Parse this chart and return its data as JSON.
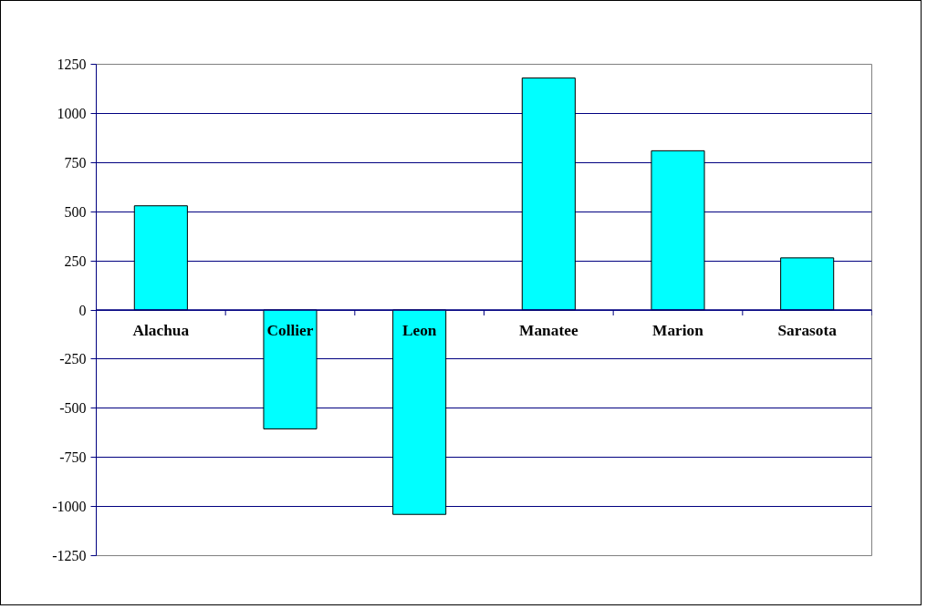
{
  "chart_data": {
    "type": "bar",
    "categories": [
      "Alachua",
      "Collier",
      "Leon",
      "Manatee",
      "Marion",
      "Sarasota"
    ],
    "values": [
      530,
      -605,
      -1040,
      1180,
      810,
      265
    ],
    "color": "#00ffff",
    "ylim": [
      -1250,
      1250
    ],
    "yticks": [
      -1250,
      -1000,
      -750,
      -500,
      -250,
      0,
      250,
      500,
      750,
      1000,
      1250
    ],
    "grid": "y"
  }
}
